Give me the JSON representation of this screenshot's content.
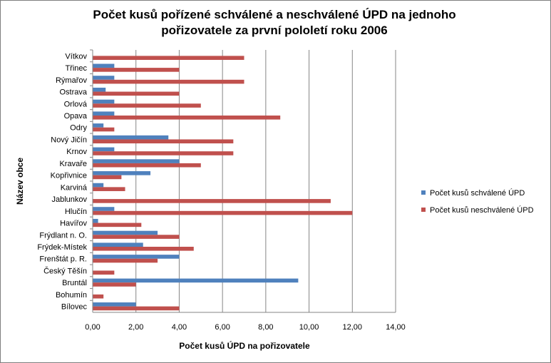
{
  "chart_data": {
    "type": "bar",
    "orientation": "horizontal",
    "title_line1": "Počet kusů pořízené schválené a neschválené ÚPD na jednoho",
    "title_line2": "pořizovatele za první pololetí roku 2006",
    "xlabel": "Počet kusů ÚPD na pořizovatele",
    "ylabel": "Název obce",
    "xlim": [
      0,
      14
    ],
    "xticks": [
      "0,00",
      "2,00",
      "4,00",
      "6,00",
      "8,00",
      "10,00",
      "12,00",
      "14,00"
    ],
    "grid": "vertical",
    "legend_position": "right",
    "categories": [
      "Vítkov",
      "Třinec",
      "Rýmařov",
      "Ostrava",
      "Orlová",
      "Opava",
      "Odry",
      "Nový Jičín",
      "Krnov",
      "Kravaře",
      "Kopřivnice",
      "Karviná",
      "Jablunkov",
      "Hlučín",
      "Havířov",
      "Frýdlant n. O.",
      "Frýdek-Místek",
      "Frenštát p. R.",
      "Český Těšín",
      "Bruntál",
      "Bohumín",
      "Bílovec"
    ],
    "series": [
      {
        "name": "Počet kusů schválené ÚPD",
        "color": "#4f81bd",
        "values": [
          0,
          1,
          1,
          0.6,
          1,
          1,
          0.5,
          3.5,
          1,
          4,
          2.67,
          0.5,
          0,
          1,
          0.25,
          3,
          2.33,
          4,
          0,
          9.5,
          0,
          2
        ]
      },
      {
        "name": "Počet kusů neschválené ÚPD",
        "color": "#c0504d",
        "values": [
          7,
          4,
          7,
          4,
          5,
          8.67,
          1,
          6.5,
          6.5,
          5,
          1.33,
          1.5,
          11,
          12,
          2.25,
          4,
          4.67,
          3,
          1,
          2,
          0.5,
          4
        ]
      }
    ]
  }
}
